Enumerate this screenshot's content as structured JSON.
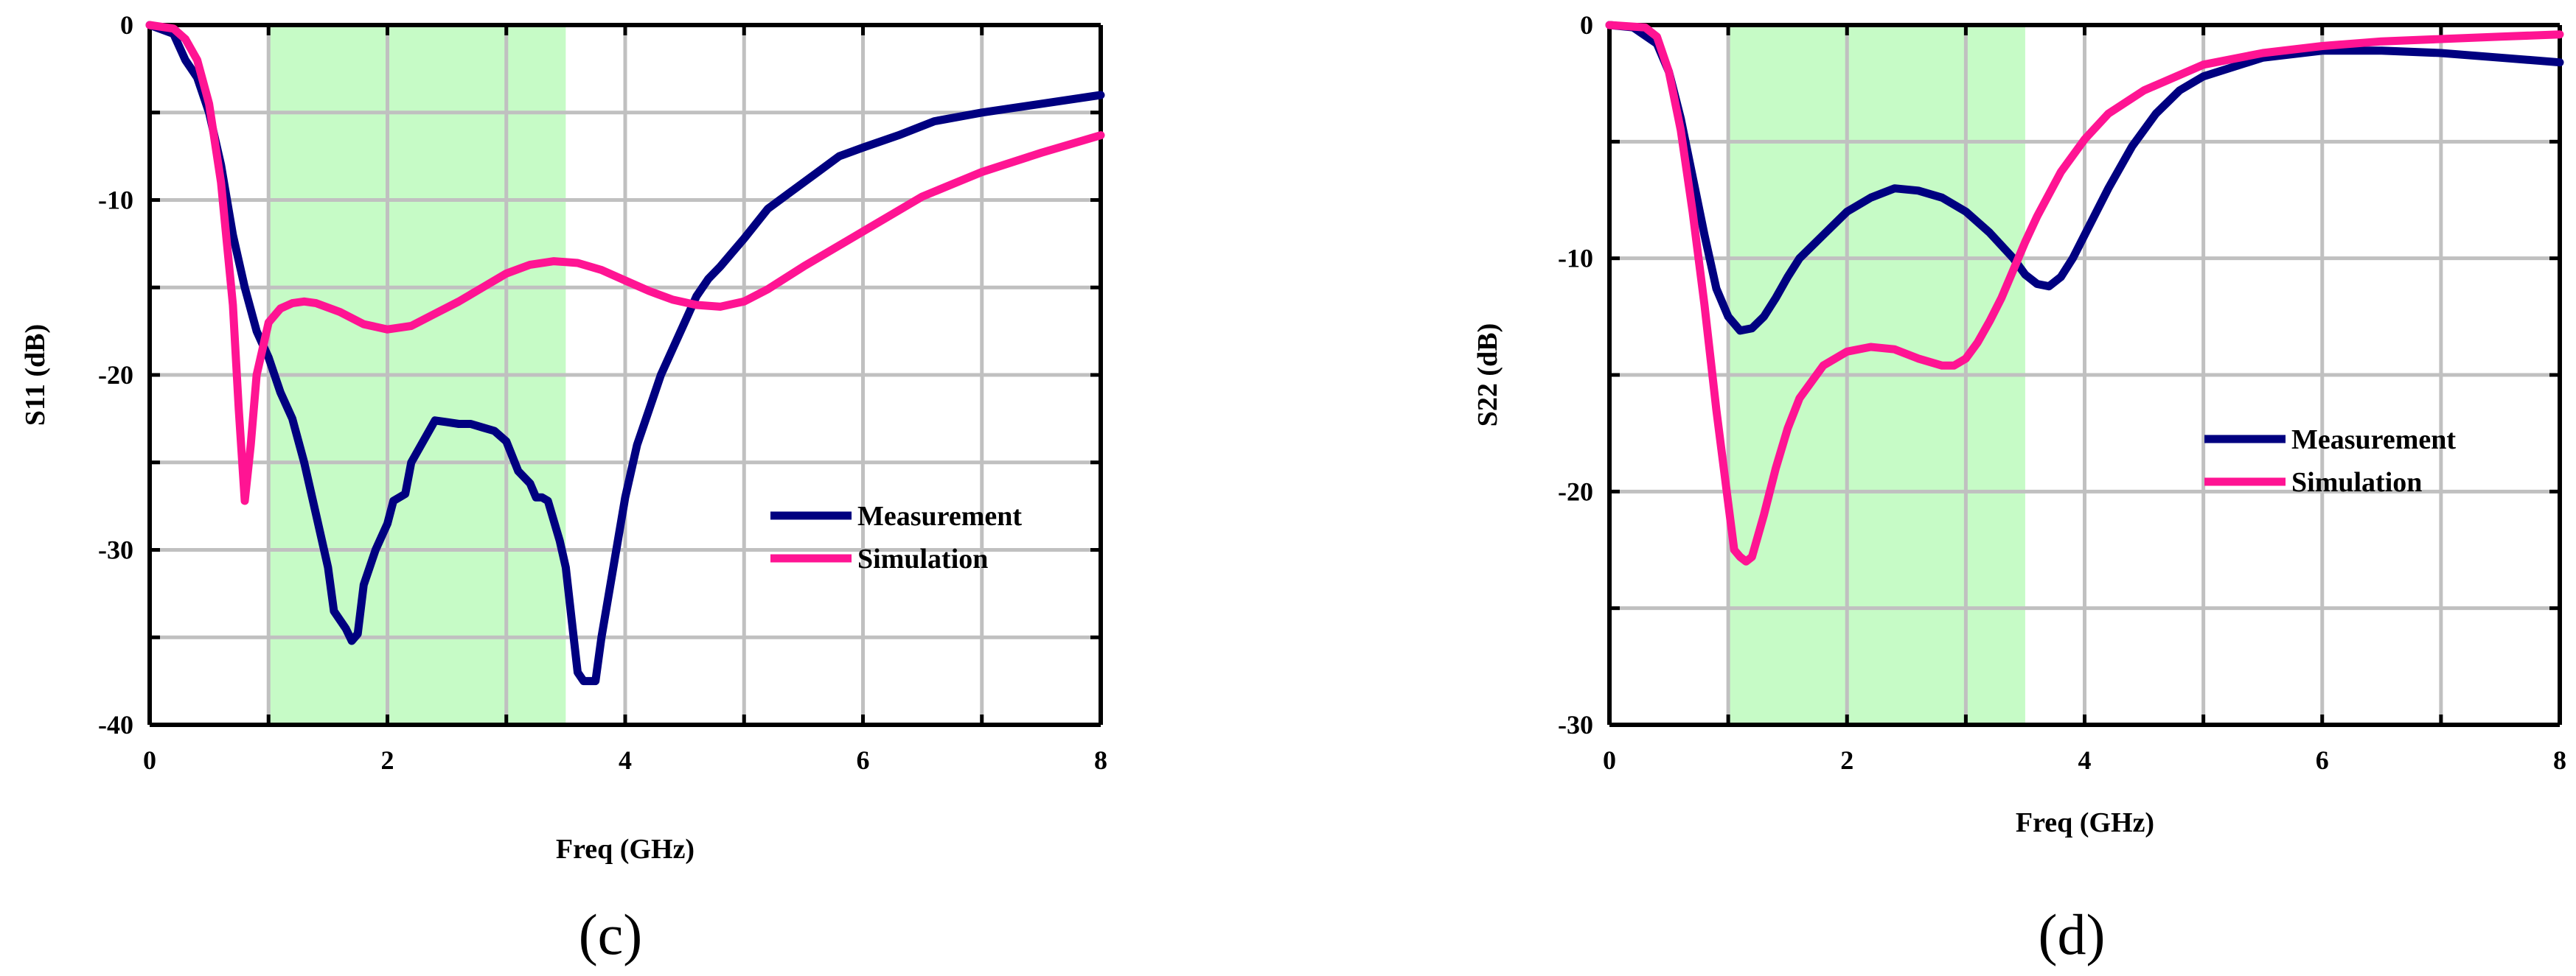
{
  "chart_data": [
    {
      "type": "line",
      "panel_label": "(c)",
      "xlabel": "Freq (GHz)",
      "ylabel": "S11 (dB)",
      "xlim": [
        0,
        8
      ],
      "ylim": [
        -40,
        0
      ],
      "x_ticks": [
        0,
        2,
        4,
        6,
        8
      ],
      "y_ticks": [
        0,
        -10,
        -20,
        -30,
        -40
      ],
      "grid": true,
      "legend_position": "right",
      "highlight_band": {
        "from": 1,
        "to": 3.5,
        "color": "#c6fbc6"
      },
      "series": [
        {
          "name": "Measurement",
          "color": "#000080",
          "points": [
            [
              0,
              0
            ],
            [
              0.2,
              -0.5
            ],
            [
              0.3,
              -2
            ],
            [
              0.4,
              -3
            ],
            [
              0.5,
              -5
            ],
            [
              0.6,
              -8
            ],
            [
              0.7,
              -12
            ],
            [
              0.8,
              -15
            ],
            [
              0.9,
              -17.5
            ],
            [
              1.0,
              -19
            ],
            [
              1.1,
              -21
            ],
            [
              1.2,
              -22.5
            ],
            [
              1.3,
              -25
            ],
            [
              1.4,
              -28
            ],
            [
              1.5,
              -31
            ],
            [
              1.55,
              -33.5
            ],
            [
              1.6,
              -34
            ],
            [
              1.65,
              -34.5
            ],
            [
              1.7,
              -35.2
            ],
            [
              1.75,
              -34.8
            ],
            [
              1.8,
              -32
            ],
            [
              1.9,
              -30
            ],
            [
              2.0,
              -28.5
            ],
            [
              2.05,
              -27.2
            ],
            [
              2.15,
              -26.8
            ],
            [
              2.2,
              -25
            ],
            [
              2.3,
              -23.8
            ],
            [
              2.4,
              -22.6
            ],
            [
              2.5,
              -22.7
            ],
            [
              2.6,
              -22.8
            ],
            [
              2.7,
              -22.8
            ],
            [
              2.8,
              -23
            ],
            [
              2.9,
              -23.2
            ],
            [
              3.0,
              -23.8
            ],
            [
              3.1,
              -25.5
            ],
            [
              3.2,
              -26.2
            ],
            [
              3.25,
              -27
            ],
            [
              3.3,
              -27
            ],
            [
              3.35,
              -27.2
            ],
            [
              3.45,
              -29.5
            ],
            [
              3.5,
              -31
            ],
            [
              3.55,
              -34
            ],
            [
              3.6,
              -37
            ],
            [
              3.65,
              -37.5
            ],
            [
              3.7,
              -37.5
            ],
            [
              3.75,
              -37.5
            ],
            [
              3.8,
              -35
            ],
            [
              3.9,
              -31
            ],
            [
              4.0,
              -27
            ],
            [
              4.1,
              -24
            ],
            [
              4.2,
              -22
            ],
            [
              4.3,
              -20
            ],
            [
              4.4,
              -18.5
            ],
            [
              4.5,
              -17
            ],
            [
              4.6,
              -15.5
            ],
            [
              4.7,
              -14.5
            ],
            [
              4.8,
              -13.8
            ],
            [
              4.9,
              -13
            ],
            [
              5.0,
              -12.2
            ],
            [
              5.2,
              -10.5
            ],
            [
              5.4,
              -9.5
            ],
            [
              5.6,
              -8.5
            ],
            [
              5.8,
              -7.5
            ],
            [
              6.0,
              -7
            ],
            [
              6.3,
              -6.3
            ],
            [
              6.6,
              -5.5
            ],
            [
              7.0,
              -5
            ],
            [
              7.5,
              -4.5
            ],
            [
              8.0,
              -4
            ]
          ]
        },
        {
          "name": "Simulation",
          "color": "#ff1493",
          "points": [
            [
              0,
              0
            ],
            [
              0.2,
              -0.2
            ],
            [
              0.3,
              -0.8
            ],
            [
              0.4,
              -2
            ],
            [
              0.5,
              -4.5
            ],
            [
              0.6,
              -9
            ],
            [
              0.7,
              -16
            ],
            [
              0.75,
              -22
            ],
            [
              0.8,
              -27.2
            ],
            [
              0.85,
              -24
            ],
            [
              0.9,
              -20
            ],
            [
              1.0,
              -17
            ],
            [
              1.1,
              -16.2
            ],
            [
              1.2,
              -15.9
            ],
            [
              1.3,
              -15.8
            ],
            [
              1.4,
              -15.9
            ],
            [
              1.6,
              -16.4
            ],
            [
              1.8,
              -17.1
            ],
            [
              2.0,
              -17.4
            ],
            [
              2.2,
              -17.2
            ],
            [
              2.4,
              -16.5
            ],
            [
              2.6,
              -15.8
            ],
            [
              2.8,
              -15
            ],
            [
              3.0,
              -14.2
            ],
            [
              3.2,
              -13.7
            ],
            [
              3.4,
              -13.5
            ],
            [
              3.6,
              -13.6
            ],
            [
              3.8,
              -14
            ],
            [
              4.0,
              -14.6
            ],
            [
              4.2,
              -15.2
            ],
            [
              4.4,
              -15.7
            ],
            [
              4.6,
              -16
            ],
            [
              4.8,
              -16.1
            ],
            [
              5.0,
              -15.8
            ],
            [
              5.2,
              -15.1
            ],
            [
              5.5,
              -13.8
            ],
            [
              6.0,
              -11.8
            ],
            [
              6.5,
              -9.8
            ],
            [
              7.0,
              -8.4
            ],
            [
              7.5,
              -7.3
            ],
            [
              8.0,
              -6.3
            ]
          ]
        }
      ]
    },
    {
      "type": "line",
      "panel_label": "(d)",
      "xlabel": "Freq (GHz)",
      "ylabel": "S22 (dB)",
      "xlim": [
        0,
        8
      ],
      "ylim": [
        -30,
        0
      ],
      "x_ticks": [
        0,
        2,
        4,
        6,
        8
      ],
      "y_ticks": [
        0,
        -10,
        -20,
        -30
      ],
      "grid": true,
      "legend_position": "right",
      "highlight_band": {
        "from": 1,
        "to": 3.5,
        "color": "#c6fbc6"
      },
      "series": [
        {
          "name": "Measurement",
          "color": "#000080",
          "points": [
            [
              0,
              0
            ],
            [
              0.2,
              -0.1
            ],
            [
              0.4,
              -0.8
            ],
            [
              0.5,
              -2
            ],
            [
              0.6,
              -4
            ],
            [
              0.7,
              -6.5
            ],
            [
              0.8,
              -9
            ],
            [
              0.9,
              -11.3
            ],
            [
              1.0,
              -12.5
            ],
            [
              1.1,
              -13.1
            ],
            [
              1.2,
              -13
            ],
            [
              1.3,
              -12.5
            ],
            [
              1.4,
              -11.7
            ],
            [
              1.5,
              -10.8
            ],
            [
              1.6,
              -10
            ],
            [
              1.8,
              -9
            ],
            [
              2.0,
              -8
            ],
            [
              2.2,
              -7.4
            ],
            [
              2.4,
              -7
            ],
            [
              2.6,
              -7.1
            ],
            [
              2.8,
              -7.4
            ],
            [
              3.0,
              -8
            ],
            [
              3.2,
              -8.9
            ],
            [
              3.4,
              -10
            ],
            [
              3.5,
              -10.7
            ],
            [
              3.6,
              -11.1
            ],
            [
              3.7,
              -11.2
            ],
            [
              3.8,
              -10.8
            ],
            [
              3.9,
              -10
            ],
            [
              4.0,
              -9
            ],
            [
              4.2,
              -7
            ],
            [
              4.4,
              -5.2
            ],
            [
              4.6,
              -3.8
            ],
            [
              4.8,
              -2.8
            ],
            [
              5.0,
              -2.2
            ],
            [
              5.5,
              -1.4
            ],
            [
              6.0,
              -1.1
            ],
            [
              6.5,
              -1.1
            ],
            [
              7.0,
              -1.2
            ],
            [
              7.5,
              -1.4
            ],
            [
              8.0,
              -1.6
            ]
          ]
        },
        {
          "name": "Simulation",
          "color": "#ff1493",
          "points": [
            [
              0,
              0
            ],
            [
              0.3,
              -0.1
            ],
            [
              0.4,
              -0.5
            ],
            [
              0.5,
              -2
            ],
            [
              0.6,
              -4.5
            ],
            [
              0.7,
              -8
            ],
            [
              0.8,
              -12
            ],
            [
              0.9,
              -16.5
            ],
            [
              1.0,
              -20.5
            ],
            [
              1.05,
              -22.5
            ],
            [
              1.1,
              -22.8
            ],
            [
              1.15,
              -23
            ],
            [
              1.2,
              -22.8
            ],
            [
              1.3,
              -21
            ],
            [
              1.4,
              -19
            ],
            [
              1.5,
              -17.3
            ],
            [
              1.6,
              -16
            ],
            [
              1.8,
              -14.6
            ],
            [
              2.0,
              -14
            ],
            [
              2.2,
              -13.8
            ],
            [
              2.4,
              -13.9
            ],
            [
              2.6,
              -14.3
            ],
            [
              2.8,
              -14.6
            ],
            [
              2.9,
              -14.6
            ],
            [
              3.0,
              -14.3
            ],
            [
              3.1,
              -13.6
            ],
            [
              3.2,
              -12.7
            ],
            [
              3.3,
              -11.7
            ],
            [
              3.4,
              -10.5
            ],
            [
              3.5,
              -9.3
            ],
            [
              3.6,
              -8.2
            ],
            [
              3.8,
              -6.3
            ],
            [
              4.0,
              -4.9
            ],
            [
              4.2,
              -3.8
            ],
            [
              4.5,
              -2.8
            ],
            [
              5.0,
              -1.7
            ],
            [
              5.5,
              -1.2
            ],
            [
              6.0,
              -0.9
            ],
            [
              6.5,
              -0.7
            ],
            [
              7.0,
              -0.6
            ],
            [
              7.5,
              -0.5
            ],
            [
              8.0,
              -0.4
            ]
          ]
        }
      ]
    }
  ]
}
